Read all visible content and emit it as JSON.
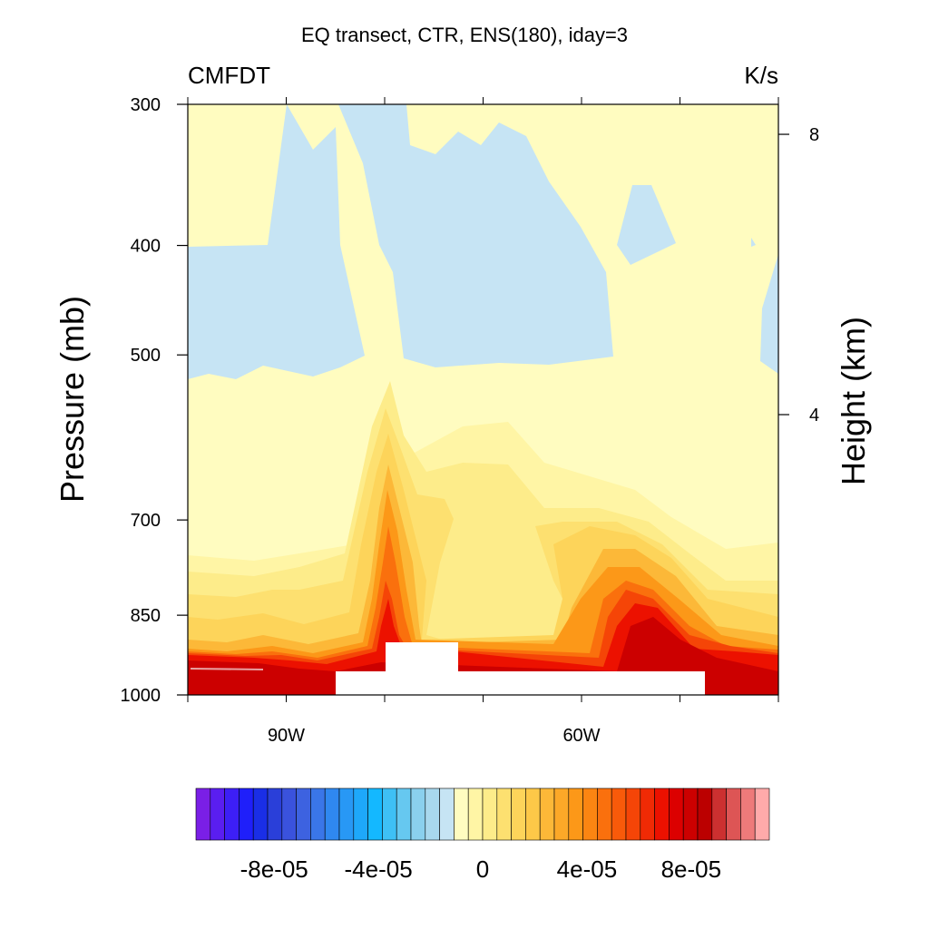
{
  "chart_data": {
    "type": "heatmap",
    "title": "EQ transect, CTR, ENS(180), iday=3",
    "left_label": "CMFDT",
    "right_label": "K/s",
    "ylabel": "Pressure (mb)",
    "y2label": "Height (km)",
    "y_ticks": [
      "300",
      "400",
      "500",
      "700",
      "850",
      "1000"
    ],
    "y2_ticks": [
      "8",
      "4"
    ],
    "x_ticks": [
      "90W",
      "60W"
    ],
    "x_minor_ticks_deg": [
      -100,
      -90,
      -80,
      -70,
      -60,
      -50,
      -40
    ],
    "xlim_deg": [
      -100,
      -40
    ],
    "ylim_mb": [
      1000,
      300
    ],
    "y2_tick_heights_km": [
      8,
      4
    ],
    "colorbar": {
      "labels": [
        "-8e-05",
        "-4e-05",
        "0",
        "4e-05",
        "8e-05"
      ],
      "label_values": [
        -8e-05,
        -4e-05,
        0,
        4e-05,
        8e-05
      ],
      "range": [
        -0.00011,
        0.00011
      ],
      "colors": [
        "#7a1fe6",
        "#5a1ef0",
        "#3d1ff6",
        "#1f1ffa",
        "#1a2ee6",
        "#2a3fd9",
        "#3a52dd",
        "#3d62e0",
        "#3a76e8",
        "#2f88f0",
        "#2898f5",
        "#1ea8fa",
        "#14b8ff",
        "#3ec0f5",
        "#66c8f0",
        "#8ad0ee",
        "#a8d8ee",
        "#c6e4f4",
        "#fffcc0",
        "#fff5a5",
        "#fdec8a",
        "#fde070",
        "#fdd45a",
        "#fdc848",
        "#fcb838",
        "#fca828",
        "#fc9818",
        "#fb8512",
        "#fa700d",
        "#f85a0a",
        "#f54507",
        "#f02a05",
        "#ec1100",
        "#dc0000",
        "#cc0000",
        "#bb0000",
        "#cc3030",
        "#dd5555",
        "#ee7a7a",
        "#ffaaaa"
      ]
    },
    "regions": [
      {
        "level": "neg_weak",
        "color": "#c6e4f4"
      },
      {
        "level": "pos_1",
        "color": "#fff5a5"
      },
      {
        "level": "pos_2",
        "color": "#fdec8a"
      },
      {
        "level": "pos_3",
        "color": "#fde070"
      },
      {
        "level": "pos_4",
        "color": "#fdd45a"
      },
      {
        "level": "pos_5",
        "color": "#fcb838"
      },
      {
        "level": "pos_6",
        "color": "#fc9818"
      },
      {
        "level": "pos_7",
        "color": "#fa700d"
      },
      {
        "level": "pos_8",
        "color": "#f54507"
      },
      {
        "level": "pos_9",
        "color": "#ec1100"
      },
      {
        "level": "pos_10",
        "color": "#cc0000"
      },
      {
        "level": "missing",
        "color": "#ffffff"
      }
    ],
    "background_color": "#fffcc0"
  }
}
